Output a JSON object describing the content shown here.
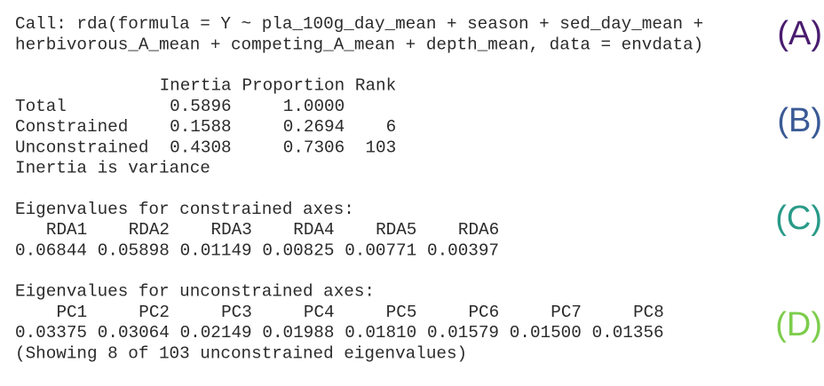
{
  "call": [
    "Call: rda(formula = Y ~ pla_100g_day_mean + season + sed_day_mean +",
    "herbivorous_A_mean + competing_A_mean + depth_mean, data = envdata)"
  ],
  "inertia_table": {
    "header": [
      "Inertia",
      "Proportion",
      "Rank"
    ],
    "rows": [
      {
        "label": "Total",
        "inertia": "0.5896",
        "proportion": "1.0000"
      },
      {
        "label": "Constrained",
        "inertia": "0.1588",
        "proportion": "0.2694",
        "rank": "6"
      },
      {
        "label": "Unconstrained",
        "inertia": "0.4308",
        "proportion": "0.7306",
        "rank": "103"
      }
    ],
    "note": "Inertia is variance"
  },
  "constrained": {
    "heading": "Eigenvalues for constrained axes:",
    "axes": [
      "RDA1",
      "RDA2",
      "RDA3",
      "RDA4",
      "RDA5",
      "RDA6"
    ],
    "values": [
      "0.06844",
      "0.05898",
      "0.01149",
      "0.00825",
      "0.00771",
      "0.00397"
    ]
  },
  "unconstrained": {
    "heading": "Eigenvalues for unconstrained axes:",
    "axes": [
      "PC1",
      "PC2",
      "PC3",
      "PC4",
      "PC5",
      "PC6",
      "PC7",
      "PC8"
    ],
    "values": [
      "0.03375",
      "0.03064",
      "0.02149",
      "0.01988",
      "0.01810",
      "0.01579",
      "0.01500",
      "0.01356"
    ],
    "note": "(Showing 8 of 103 unconstrained eigenvalues)"
  },
  "labels": [
    "(A)",
    "(B)",
    "(C)",
    "(D)"
  ]
}
